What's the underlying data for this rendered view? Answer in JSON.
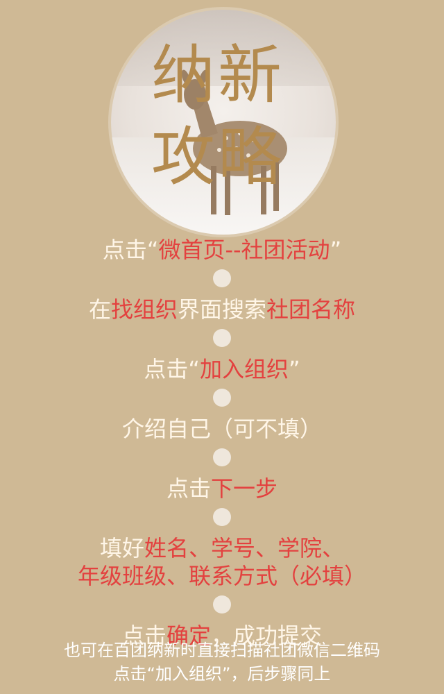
{
  "hero": {
    "title_line1": "纳新",
    "title_line2": "攻略"
  },
  "steps": [
    {
      "parts": [
        {
          "text": "点击",
          "hl": false
        },
        {
          "text": "“",
          "hl": false
        },
        {
          "text": "微首页--社团活动",
          "hl": true
        },
        {
          "text": "”",
          "hl": false
        }
      ]
    },
    {
      "parts": [
        {
          "text": "在",
          "hl": false
        },
        {
          "text": "找组织",
          "hl": true
        },
        {
          "text": "界面搜索",
          "hl": false
        },
        {
          "text": "社团名称",
          "hl": true
        }
      ]
    },
    {
      "parts": [
        {
          "text": "点击",
          "hl": false
        },
        {
          "text": "“",
          "hl": false
        },
        {
          "text": "加入组织",
          "hl": true
        },
        {
          "text": "”",
          "hl": false
        }
      ]
    },
    {
      "parts": [
        {
          "text": "介绍自己（可不填）",
          "hl": false
        }
      ]
    },
    {
      "parts": [
        {
          "text": "点击",
          "hl": false
        },
        {
          "text": "下一步",
          "hl": true
        }
      ]
    },
    {
      "parts": [
        {
          "text": "填好",
          "hl": false
        },
        {
          "text": "姓名、学号、学院、",
          "hl": true
        }
      ],
      "line2": [
        {
          "text": "年级班级、联系方式（必填）",
          "hl": true
        }
      ]
    },
    {
      "parts": [
        {
          "text": "点击",
          "hl": false
        },
        {
          "text": "确定",
          "hl": true
        },
        {
          "text": "，成功提交",
          "hl": false
        }
      ]
    }
  ],
  "footer": {
    "line1": "也可在百团纳新时直接扫描社团微信二维码",
    "line2": "点击“加入组织”，后步骤同上"
  },
  "colors": {
    "background": "#cfb995",
    "highlight": "#e3413f",
    "text": "#fff6e8",
    "title": "#b38a4e"
  }
}
